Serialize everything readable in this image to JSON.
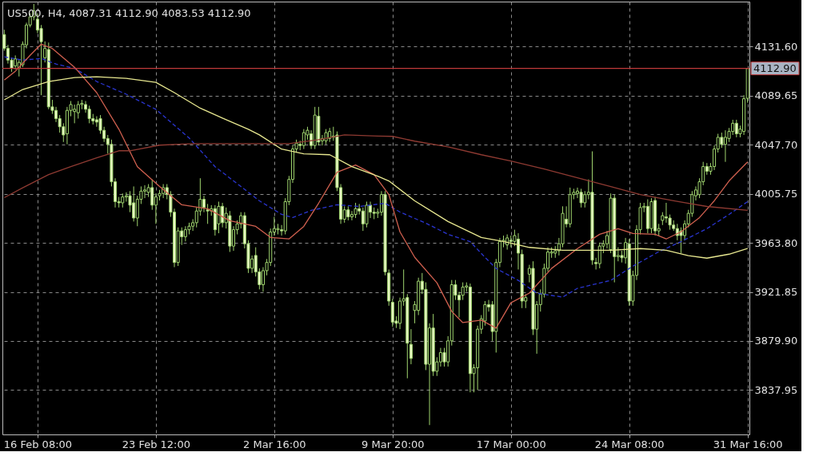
{
  "chart_data": {
    "type": "candlestick",
    "title": "US500, H4, 4087.31 4112.90 4083.53 4112.90",
    "categories": [
      null,
      null,
      null,
      null,
      null,
      null,
      null,
      null,
      null,
      "16 Feb 08:00",
      null,
      null,
      null,
      null,
      null,
      null,
      null,
      null,
      null,
      null,
      null,
      null,
      null,
      null,
      null,
      null,
      null,
      null,
      null,
      null,
      null,
      null,
      null,
      null,
      null,
      null,
      null,
      null,
      null,
      null,
      null,
      "23 Feb 12:00",
      null,
      null,
      null,
      null,
      null,
      null,
      null,
      null,
      null,
      null,
      null,
      null,
      null,
      null,
      null,
      null,
      null,
      null,
      null,
      null,
      null,
      null,
      null,
      null,
      null,
      null,
      null,
      null,
      null,
      null,
      null,
      "2 Mar 16:00",
      null,
      null,
      null,
      null,
      null,
      null,
      null,
      null,
      null,
      null,
      null,
      null,
      null,
      null,
      null,
      null,
      null,
      null,
      null,
      null,
      null,
      null,
      null,
      null,
      null,
      null,
      null,
      null,
      null,
      null,
      null,
      "9 Mar 20:00",
      null,
      null,
      null,
      null,
      null,
      null,
      null,
      null,
      null,
      null,
      null,
      null,
      null,
      null,
      null,
      null,
      null,
      null,
      null,
      null,
      null,
      null,
      null,
      null,
      null,
      null,
      null,
      null,
      null,
      null,
      null,
      "17 Mar 00:00",
      null,
      null,
      null,
      null,
      null,
      null,
      null,
      null,
      null,
      null,
      null,
      null,
      null,
      null,
      null,
      null,
      null,
      null,
      null,
      null,
      null,
      null,
      null,
      null,
      null,
      null,
      null,
      null,
      null,
      null,
      null,
      "24 Mar 08:00",
      null,
      null,
      null,
      null,
      null,
      null,
      null,
      null,
      null,
      null,
      null,
      null,
      null,
      null,
      null,
      null,
      null,
      null,
      null,
      null,
      null,
      null,
      null,
      null,
      null,
      null,
      null,
      null,
      null,
      null,
      null,
      "31 Mar 16:00"
    ],
    "ohlc": [
      [
        4141.8,
        4146,
        4128,
        4130
      ],
      [
        4130,
        4133,
        4117,
        4120
      ],
      [
        4120,
        4122,
        4110,
        4113
      ],
      [
        4115,
        4124,
        4112,
        4121
      ],
      [
        4113,
        4120,
        4106,
        4118
      ],
      [
        4116,
        4136,
        4114,
        4133.6
      ],
      [
        4133,
        4152,
        4130,
        4150
      ],
      [
        4150,
        4160,
        4148,
        4157
      ],
      [
        4157,
        4168,
        4154,
        4162
      ],
      [
        4155,
        4160,
        4143,
        4145.7
      ],
      [
        4147,
        4150,
        4090,
        4135.7
      ],
      [
        4122,
        4136,
        4118,
        4130
      ],
      [
        4129,
        4135,
        4078,
        4080
      ],
      [
        4080,
        4086,
        4074,
        4077
      ],
      [
        4077,
        4080,
        4067,
        4070
      ],
      [
        4070,
        4073,
        4058,
        4063
      ],
      [
        4063,
        4066,
        4050,
        4056
      ],
      [
        4057,
        4080,
        4048,
        4077
      ],
      [
        4077,
        4085,
        4072,
        4082
      ],
      [
        4076,
        4082,
        4066,
        4078
      ],
      [
        4075,
        4085,
        4070,
        4082
      ],
      [
        4082,
        4086,
        4078,
        4083
      ],
      [
        4082,
        4085,
        4075,
        4078
      ],
      [
        4078,
        4081,
        4066,
        4070
      ],
      [
        4070,
        4074,
        4065,
        4068
      ],
      [
        4069,
        4072,
        4063,
        4067
      ],
      [
        4070,
        4073,
        4057,
        4060
      ],
      [
        4060,
        4063,
        4050,
        4053
      ],
      [
        4053,
        4056,
        4040,
        4048
      ],
      [
        4048,
        4052,
        4012,
        4016
      ],
      [
        4016,
        4019,
        3994,
        3999
      ],
      [
        3999,
        4003,
        3994,
        3998
      ],
      [
        3998,
        4006,
        3994,
        4003
      ],
      [
        4003,
        4007,
        3999,
        4004
      ],
      [
        4004,
        4008,
        3990,
        3996
      ],
      [
        3998,
        4012,
        3982,
        3985
      ],
      [
        3985,
        4004,
        3978,
        4001
      ],
      [
        4001,
        4012,
        3997,
        4008
      ],
      [
        4008,
        4013,
        4002,
        4009
      ],
      [
        4007,
        4014,
        4003,
        4011
      ],
      [
        4011,
        4018,
        3992,
        3996
      ],
      [
        3996,
        4006,
        3980,
        4003
      ],
      [
        4004,
        4009,
        4000,
        4006
      ],
      [
        4006,
        4014,
        4002,
        4011
      ],
      [
        4011,
        4014,
        4001,
        4005
      ],
      [
        4005,
        4008,
        3986,
        3990
      ],
      [
        3990,
        3993,
        3943,
        3947
      ],
      [
        3947,
        3977,
        3944,
        3974
      ],
      [
        3974,
        3977,
        3962,
        3969
      ],
      [
        3969,
        3978,
        3965,
        3975
      ],
      [
        3975,
        3981,
        3971,
        3978
      ],
      [
        3978,
        3984,
        3974,
        3981
      ],
      [
        3981,
        3994,
        3977,
        3991
      ],
      [
        3991,
        4019,
        3987,
        4001
      ],
      [
        4001,
        4004,
        3990,
        3994
      ],
      [
        3992,
        3997,
        3980,
        3991
      ],
      [
        3991,
        3996,
        3987,
        3993
      ],
      [
        3993,
        3996,
        3970,
        3975
      ],
      [
        3980,
        3999,
        3972,
        3995
      ],
      [
        3995,
        3998,
        3977,
        3981
      ],
      [
        3981,
        3994,
        3976,
        3989
      ],
      [
        3987,
        3991,
        3956,
        3961
      ],
      [
        3961,
        3978,
        3957,
        3975
      ],
      [
        3975,
        3983,
        3971,
        3980
      ],
      [
        3980,
        3990,
        3976,
        3987
      ],
      [
        3987,
        3990,
        3959,
        3963
      ],
      [
        3963,
        3966,
        3938,
        3942
      ],
      [
        3942,
        3953,
        3938,
        3950
      ],
      [
        3953,
        3960,
        3935,
        3939
      ],
      [
        3939,
        3942,
        3924,
        3928
      ],
      [
        3928,
        3943,
        3922,
        3940
      ],
      [
        3940,
        3950,
        3936,
        3947
      ],
      [
        3947,
        3976,
        3944,
        3973
      ],
      [
        3973,
        3986,
        3970,
        3976
      ],
      [
        3975,
        3980,
        3971,
        3976
      ],
      [
        3975,
        3979,
        3970,
        3974
      ],
      [
        3974,
        4002,
        3971,
        3999
      ],
      [
        3999,
        4021,
        3996,
        4018
      ],
      [
        4018,
        4047,
        4015,
        4044
      ],
      [
        4044,
        4052,
        4041,
        4049
      ],
      [
        4048,
        4051,
        4043,
        4047
      ],
      [
        4047,
        4061,
        4044,
        4058
      ],
      [
        4056,
        4063,
        4052,
        4060
      ],
      [
        4057,
        4060,
        4044,
        4047
      ],
      [
        4047,
        4080,
        4044,
        4073
      ],
      [
        4072,
        4080,
        4047,
        4050
      ],
      [
        4051,
        4056,
        4047,
        4053
      ],
      [
        4051,
        4061,
        4048,
        4058
      ],
      [
        4053,
        4062,
        4050,
        4059
      ],
      [
        4055,
        4063,
        4051,
        4054
      ],
      [
        4056,
        4059,
        4008,
        4011
      ],
      [
        4011,
        4014,
        3980,
        3984
      ],
      [
        3984,
        3995,
        3981,
        3992
      ],
      [
        3992,
        3995,
        3983,
        3986
      ],
      [
        3986,
        3991,
        3983,
        3988
      ],
      [
        3988,
        3998,
        3985,
        3993
      ],
      [
        3993,
        3997,
        3988,
        3991
      ],
      [
        3991,
        3994,
        3974,
        3980
      ],
      [
        3980,
        3999,
        3977,
        3996
      ],
      [
        3996,
        3999,
        3985,
        3990
      ],
      [
        3990,
        3994,
        3984,
        3989
      ],
      [
        3989,
        3993,
        3985,
        3990
      ],
      [
        3990,
        4008,
        3987,
        4005
      ],
      [
        4005,
        4008,
        3936,
        3939
      ],
      [
        3938,
        3941,
        3910,
        3914
      ],
      [
        3913,
        3916,
        3892,
        3896
      ],
      [
        3897,
        3901,
        3891,
        3895
      ],
      [
        3895,
        3917,
        3890,
        3914
      ],
      [
        3914,
        3941,
        3910,
        3916
      ],
      [
        3917,
        3920,
        3848,
        3878
      ],
      [
        3877,
        3890,
        3860,
        3865
      ],
      [
        3906,
        3914,
        3895,
        3911
      ],
      [
        3906,
        3934,
        3902,
        3931
      ],
      [
        3931,
        3938,
        3920,
        3924
      ],
      [
        3924,
        3930,
        3855,
        3860
      ],
      [
        3860,
        3895,
        3808,
        3891
      ],
      [
        3891,
        3903,
        3850,
        3854
      ],
      [
        3854,
        3866,
        3850,
        3862
      ],
      [
        3862,
        3874,
        3858,
        3870
      ],
      [
        3870,
        3874,
        3858,
        3862
      ],
      [
        3862,
        3884,
        3858,
        3880
      ],
      [
        3880,
        3932,
        3876,
        3928
      ],
      [
        3928,
        3932,
        3915,
        3919
      ],
      [
        3919,
        3922,
        3900,
        3915
      ],
      [
        3919,
        3930,
        3915,
        3926
      ],
      [
        3926,
        3930,
        3922,
        3927
      ],
      [
        3926,
        3929,
        3836,
        3852
      ],
      [
        3852,
        3860,
        3836,
        3857
      ],
      [
        3857,
        3893,
        3838,
        3890
      ],
      [
        3890,
        3902,
        3886,
        3899
      ],
      [
        3897,
        3914,
        3893,
        3911
      ],
      [
        3911,
        3915,
        3905,
        3909
      ],
      [
        3911,
        3914,
        3880,
        3888
      ],
      [
        3888,
        3950,
        3870,
        3947
      ],
      [
        3947,
        3968,
        3943,
        3965
      ],
      [
        3965,
        3970,
        3960,
        3966
      ],
      [
        3962,
        3971,
        3958,
        3968
      ],
      [
        3966,
        3970,
        3960,
        3965
      ],
      [
        3965,
        3975,
        3961,
        3970
      ],
      [
        3967,
        3972,
        3941,
        3955
      ],
      [
        3954,
        3958,
        3908,
        3914
      ],
      [
        3914,
        3920,
        3908,
        3917
      ],
      [
        3937,
        3945,
        3930,
        3942
      ],
      [
        3942,
        3948,
        3885,
        3890
      ],
      [
        3890,
        3914,
        3869,
        3911
      ],
      [
        3911,
        3924,
        3905,
        3920
      ],
      [
        3920,
        3946,
        3917,
        3942
      ],
      [
        3942,
        3960,
        3939,
        3956
      ],
      [
        3955,
        3960,
        3951,
        3956
      ],
      [
        3955,
        3961,
        3951,
        3957
      ],
      [
        3957,
        3968,
        3953,
        3963
      ],
      [
        3963,
        3995,
        3960,
        3989
      ],
      [
        3984,
        3995,
        3977,
        3980
      ],
      [
        3980,
        4011,
        3977,
        4005
      ],
      [
        4005,
        4010,
        4001,
        4007
      ],
      [
        4006,
        4011,
        4002,
        4008
      ],
      [
        4007,
        4010,
        3994,
        3998
      ],
      [
        3998,
        4008,
        3994,
        4005
      ],
      [
        4005,
        4018,
        4001,
        4007
      ],
      [
        4007,
        4042,
        3945,
        3949
      ],
      [
        3947,
        3951,
        3941,
        3946
      ],
      [
        3946,
        3964,
        3942,
        3961
      ],
      [
        3961,
        3966,
        3955,
        3963
      ],
      [
        3963,
        3974,
        3959,
        3970
      ],
      [
        3958,
        4006,
        3955,
        4002
      ],
      [
        4002,
        4005,
        3930,
        3952
      ],
      [
        3952,
        3960,
        3948,
        3953
      ],
      [
        3953,
        3957,
        3947,
        3951
      ],
      [
        3951,
        3968,
        3946,
        3964
      ],
      [
        3963,
        3967,
        3910,
        3914
      ],
      [
        3914,
        3940,
        3910,
        3936
      ],
      [
        3936,
        3979,
        3932,
        3975
      ],
      [
        3975,
        3998,
        3971,
        3994
      ],
      [
        3994,
        3998,
        3990,
        3995
      ],
      [
        3995,
        4001,
        3972,
        3976
      ],
      [
        3976,
        4002,
        3972,
        3999
      ],
      [
        4000,
        4003,
        3970,
        3974
      ],
      [
        3974,
        3980,
        3970,
        3976
      ],
      [
        3983,
        3990,
        3979,
        3987
      ],
      [
        3986,
        3998,
        3981,
        3985
      ],
      [
        3985,
        3988,
        3975,
        3979
      ],
      [
        3979,
        3983,
        3974,
        3976
      ],
      [
        3976,
        3980,
        3966,
        3970
      ],
      [
        3974,
        3977,
        3955,
        3970
      ],
      [
        3970,
        3983,
        3966,
        3980
      ],
      [
        3980,
        3992,
        3977,
        3989
      ],
      [
        3989,
        4008,
        3986,
        4005
      ],
      [
        4004,
        4012,
        4000,
        4009
      ],
      [
        4005,
        4019,
        4002,
        4016
      ],
      [
        4016,
        4033,
        4013,
        4029
      ],
      [
        4029,
        4032,
        4022,
        4025
      ],
      [
        4025,
        4032,
        4022,
        4029
      ],
      [
        4029,
        4047,
        4026,
        4044
      ],
      [
        4044,
        4057,
        4041,
        4054
      ],
      [
        4054,
        4058,
        4045,
        4048
      ],
      [
        4048,
        4060,
        4033,
        4054
      ],
      [
        4053,
        4062,
        4050,
        4059
      ],
      [
        4059,
        4069,
        4056,
        4066
      ],
      [
        4066,
        4069,
        4054,
        4057
      ],
      [
        4057,
        4064,
        4054,
        4061
      ],
      [
        4059,
        4090,
        4056,
        4087
      ],
      [
        4087.31,
        4112.9,
        4083.53,
        4112.9
      ]
    ],
    "series": [
      {
        "type": "line",
        "color": "#2a35d0",
        "line_style": "dashed",
        "values": [
          4122.8,
          null,
          null,
          null,
          null,
          4120,
          null,
          null,
          null,
          null,
          4121.4,
          null,
          null,
          null,
          4116.6,
          null,
          null,
          null,
          null,
          4112.9,
          null,
          null,
          null,
          null,
          null,
          4101.7,
          null,
          null,
          null,
          null,
          null,
          null,
          null,
          4090.8,
          null,
          null,
          null,
          null,
          null,
          null,
          null,
          4077.9,
          null,
          null,
          null,
          null,
          null,
          null,
          null,
          null,
          4053.4,
          null,
          null,
          null,
          null,
          null,
          null,
          4028.9,
          null,
          null,
          null,
          null,
          null,
          null,
          4011.9,
          null,
          null,
          null,
          null,
          3999.7,
          null,
          null,
          null,
          null,
          null,
          3988.1,
          null,
          null,
          3985.4,
          null,
          null,
          null,
          null,
          3991.5,
          null,
          null,
          null,
          null,
          null,
          null,
          3996.3,
          null,
          null,
          null,
          null,
          null,
          3994.9,
          null,
          null,
          null,
          null,
          null,
          null,
          3997.6,
          null,
          null,
          null,
          3990.1,
          null,
          null,
          null,
          null,
          null,
          null,
          3980.6,
          null,
          null,
          null,
          null,
          null,
          3971.1,
          null,
          null,
          null,
          null,
          null,
          3964.8,
          null,
          null,
          null,
          3951.4,
          null,
          null,
          3941.9,
          null,
          null,
          null,
          null,
          null,
          3931.7,
          null,
          null,
          null,
          null,
          3920.8,
          null,
          null,
          null,
          null,
          null,
          null,
          3917.4,
          null,
          null,
          null,
          3924.9,
          null,
          null,
          null,
          null,
          null,
          null,
          null,
          null,
          3931.7,
          null,
          null,
          null,
          null,
          null,
          3943.9,
          null,
          null,
          null,
          null,
          null,
          null,
          3956.2,
          null,
          null,
          null,
          null,
          null,
          3964.8,
          null,
          null,
          null,
          null,
          null,
          null,
          3975.9,
          null,
          null,
          null,
          null,
          null,
          3988.1,
          null,
          null,
          null,
          null,
          3999
        ]
      },
      {
        "type": "line",
        "color": "#d0604f",
        "values": [
          4103,
          null,
          null,
          4110.5,
          null,
          null,
          null,
          4124.1,
          null,
          null,
          4133.6,
          null,
          null,
          4129.9,
          null,
          null,
          null,
          null,
          null,
          4113.9,
          null,
          null,
          null,
          null,
          null,
          4092.2,
          null,
          null,
          null,
          null,
          null,
          4060.9,
          null,
          null,
          null,
          null,
          4028.9,
          null,
          null,
          null,
          null,
          null,
          4011.9,
          null,
          null,
          null,
          null,
          null,
          3996.3,
          null,
          null,
          null,
          null,
          null,
          null,
          3992.9,
          null,
          null,
          null,
          null,
          null,
          3982.7,
          null,
          null,
          null,
          null,
          null,
          null,
          3977.9,
          null,
          null,
          null,
          3968.4,
          null,
          null,
          null,
          null,
          3967.1,
          null,
          null,
          null,
          3977.9,
          null,
          null,
          null,
          3997.6,
          null,
          null,
          null,
          null,
          4024.2,
          null,
          null,
          null,
          null,
          4030.3,
          null,
          null,
          null,
          null,
          4022.1,
          null,
          null,
          null,
          4005.1,
          null,
          null,
          3973.2,
          null,
          null,
          null,
          3951.4,
          null,
          null,
          null,
          null,
          null,
          3929.6,
          null,
          null,
          null,
          3905.2,
          null,
          null,
          3895.6,
          null,
          null,
          null,
          null,
          3897.7,
          null,
          null,
          null,
          3890.9,
          null,
          null,
          null,
          3912.6,
          null,
          null,
          null,
          null,
          3920.8,
          null,
          null,
          null,
          null,
          null,
          3941.9,
          null,
          null,
          null,
          null,
          null,
          null,
          3958.9,
          null,
          null,
          null,
          null,
          null,
          3971.1,
          null,
          null,
          null,
          null,
          3975.9,
          null,
          null,
          null,
          3971.8,
          null,
          null,
          null,
          null,
          null,
          3971.1,
          null,
          null,
          3967.1,
          null,
          null,
          null,
          3973.2,
          null,
          null,
          null,
          null,
          3985.4,
          null,
          null,
          null,
          3999.7,
          null,
          null,
          null,
          4016.7,
          null,
          null,
          null,
          null,
          4033
        ]
      },
      {
        "type": "line",
        "color": "#e8e890",
        "values": [
          4086,
          null,
          null,
          null,
          null,
          4094.9,
          null,
          null,
          null,
          null,
          null,
          null,
          4101.7,
          null,
          null,
          null,
          null,
          null,
          null,
          4105.1,
          null,
          null,
          null,
          null,
          null,
          4105.8,
          null,
          null,
          null,
          null,
          null,
          null,
          null,
          4104.4,
          null,
          null,
          null,
          null,
          null,
          null,
          null,
          4101,
          null,
          null,
          null,
          null,
          4092.2,
          null,
          null,
          null,
          null,
          null,
          null,
          4078.9,
          null,
          null,
          null,
          null,
          null,
          4070.4,
          null,
          null,
          null,
          null,
          null,
          null,
          4060.9,
          null,
          null,
          4056.1,
          null,
          null,
          null,
          null,
          null,
          4043.9,
          null,
          null,
          null,
          null,
          null,
          4039.8,
          null,
          null,
          null,
          null,
          null,
          null,
          4039.1,
          null,
          null,
          null,
          null,
          null,
          4028.9,
          null,
          null,
          null,
          null,
          null,
          null,
          4020.8,
          null,
          null,
          4016.7,
          null,
          null,
          null,
          null,
          null,
          null,
          3999.7,
          null,
          null,
          null,
          null,
          null,
          null,
          null,
          null,
          3982,
          null,
          null,
          null,
          null,
          null,
          null,
          null,
          null,
          3968.4,
          null,
          null,
          null,
          null,
          null,
          3965,
          null,
          null,
          null,
          null,
          null,
          null,
          3959.9,
          null,
          null,
          null,
          null,
          null,
          null,
          null,
          null,
          3957.5,
          null,
          null,
          null,
          null,
          null,
          null,
          null,
          null,
          null,
          null,
          null,
          null,
          3957.5,
          null,
          null,
          null,
          null,
          null,
          null,
          null,
          3958.9,
          null,
          null,
          null,
          null,
          null,
          null,
          3957.5,
          null,
          null,
          null,
          null,
          null,
          3952.8,
          null,
          null,
          null,
          null,
          3950.7,
          null,
          null,
          null,
          null,
          null,
          3954.1,
          null,
          null,
          null,
          null,
          3958.9
        ]
      },
      {
        "type": "line",
        "color": "#8e3a32",
        "values": [
          4002.4,
          null,
          null,
          null,
          null,
          4010.9,
          null,
          null,
          null,
          null,
          null,
          null,
          4022.1,
          null,
          null,
          null,
          null,
          null,
          4028.9,
          null,
          null,
          null,
          null,
          null,
          null,
          4036.4,
          null,
          null,
          null,
          null,
          null,
          4042.5,
          null,
          null,
          4042.5,
          null,
          null,
          null,
          null,
          null,
          null,
          null,
          4047.3,
          null,
          null,
          null,
          null,
          null,
          null,
          null,
          null,
          4048.6,
          null,
          null,
          null,
          null,
          null,
          null,
          null,
          4048.6,
          null,
          null,
          null,
          null,
          null,
          null,
          null,
          null,
          4048.6,
          null,
          null,
          null,
          null,
          null,
          null,
          null,
          null,
          4048.6,
          null,
          null,
          null,
          null,
          null,
          null,
          null,
          4052,
          null,
          null,
          null,
          null,
          null,
          null,
          4056.1,
          null,
          null,
          null,
          null,
          null,
          null,
          null,
          null,
          4055.1,
          null,
          null,
          null,
          4054.8,
          null,
          null,
          null,
          null,
          null,
          4050.7,
          null,
          null,
          null,
          null,
          null,
          null,
          null,
          null,
          4045.9,
          null,
          null,
          null,
          null,
          null,
          null,
          null,
          null,
          4039.1,
          null,
          null,
          null,
          null,
          null,
          null,
          null,
          4033.7,
          null,
          null,
          null,
          null,
          null,
          null,
          null,
          null,
          4026.9,
          null,
          null,
          null,
          null,
          null,
          null,
          null,
          null,
          4019.4,
          null,
          null,
          null,
          null,
          null,
          null,
          null,
          null,
          4011.9,
          null,
          null,
          null,
          null,
          null,
          null,
          null,
          4005.1,
          null,
          null,
          null,
          null,
          null,
          null,
          null,
          null,
          3999.7,
          null,
          null,
          null,
          null,
          null,
          null,
          null,
          null,
          3994.9,
          null,
          null,
          null,
          null,
          null,
          null,
          null,
          null,
          null,
          null,
          3991.5
        ]
      }
    ],
    "ylim": [
      3800,
      4170
    ],
    "yticks": [
      {
        "value": 3837.95,
        "label": "3837.95"
      },
      {
        "value": 3879.9,
        "label": "3879.90"
      },
      {
        "value": 3921.85,
        "label": "3921.85"
      },
      {
        "value": 3963.8,
        "label": "3963.80"
      },
      {
        "value": 4005.75,
        "label": "4005.75"
      },
      {
        "value": 4047.7,
        "label": "4047.70"
      },
      {
        "value": 4089.65,
        "label": "4089.65"
      },
      {
        "value": 4131.6,
        "label": "4131.60"
      }
    ],
    "ref_lines": [
      {
        "axis": "y",
        "value": 4112.9,
        "label": "4112.90",
        "color": "#c03a3a"
      }
    ],
    "grid": true
  }
}
